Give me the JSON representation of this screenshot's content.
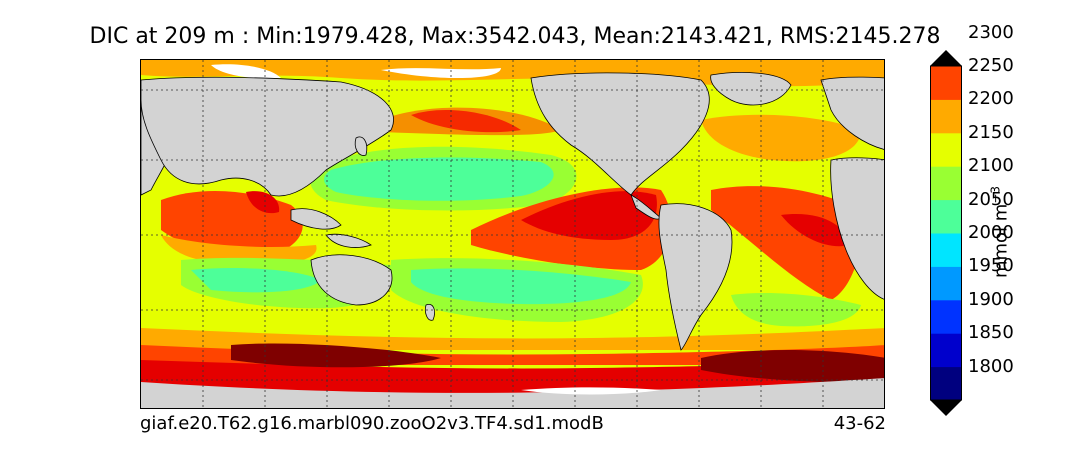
{
  "title": "DIC at 209 m : Min:1979.428, Max:3542.043, Mean:2143.421, RMS:2145.278",
  "run_label": "giaf.e20.T62.g16.marbl090.zooO2v3.TF4.sd1.modB",
  "years_label": "43-62",
  "colorbar": {
    "unit_text": "mmol m",
    "unit_exp": "−3",
    "levels": [
      "1800",
      "1850",
      "1900",
      "1950",
      "2000",
      "2050",
      "2100",
      "2150",
      "2200",
      "2250",
      "2300"
    ],
    "colors": [
      "#00007f",
      "#0000cc",
      "#0033ff",
      "#0099ff",
      "#00e5ff",
      "#4dff99",
      "#99ff33",
      "#e5ff00",
      "#ffaa00",
      "#ff4400",
      "#e50000",
      "#7f0000"
    ],
    "extend": "both"
  },
  "map": {
    "land_color": "#d3d3d3",
    "seaice_color": "#ffffff",
    "gridlines": "dashed"
  }
}
